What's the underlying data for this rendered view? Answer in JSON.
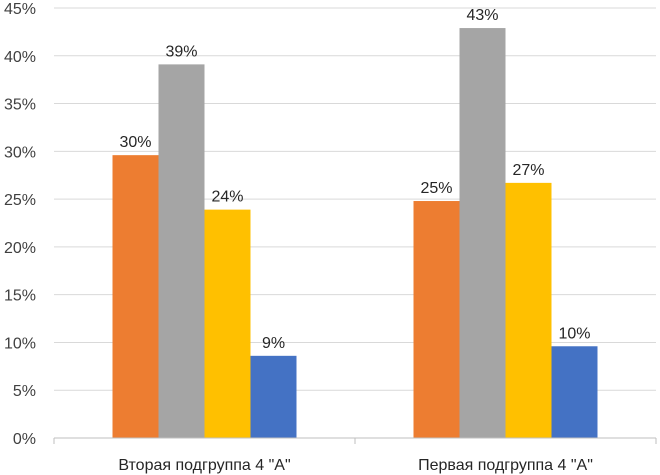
{
  "chart_data": {
    "type": "bar",
    "title": "",
    "xlabel": "",
    "ylabel": "",
    "categories": [
      "Вторая подгруппа 4 \"А\"",
      "Первая подгруппа 4 \"А\""
    ],
    "series": [
      {
        "values": [
          29.6,
          24.8
        ],
        "labels": [
          "30%",
          "25%"
        ],
        "color": "#ED7D31"
      },
      {
        "values": [
          39.1,
          42.9
        ],
        "labels": [
          "39%",
          "43%"
        ],
        "color": "#A5A5A5"
      },
      {
        "values": [
          23.9,
          26.7
        ],
        "labels": [
          "24%",
          "27%"
        ],
        "color": "#FFC000"
      },
      {
        "values": [
          8.6,
          9.6
        ],
        "labels": [
          "9%",
          "10%"
        ],
        "color": "#4472C4"
      }
    ],
    "ylim": [
      0,
      45
    ],
    "yticks": [
      0,
      5,
      10,
      15,
      20,
      25,
      30,
      35,
      40,
      45
    ],
    "ytick_labels": [
      "0%",
      "5%",
      "10%",
      "15%",
      "20%",
      "25%",
      "30%",
      "35%",
      "40%",
      "45%"
    ],
    "grid": true,
    "legend": "none",
    "colors": {
      "grid": "#D9D9D9",
      "axis": "#BFBFBF"
    }
  }
}
